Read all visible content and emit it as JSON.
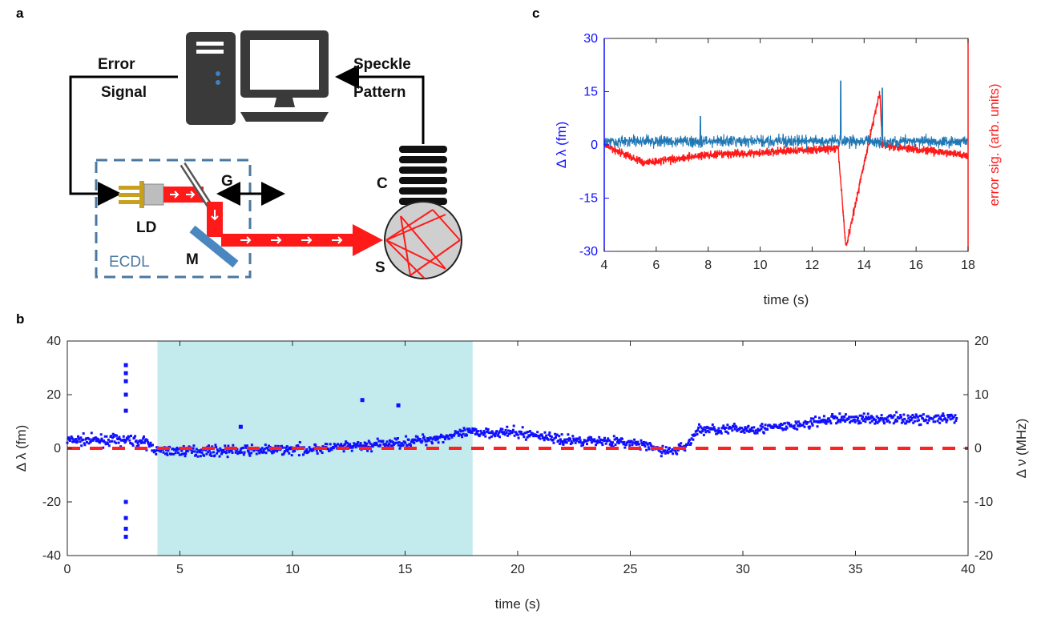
{
  "panels": {
    "a": "a",
    "b": "b",
    "c": "c"
  },
  "diagram": {
    "error_signal_line1": "Error",
    "error_signal_line2": "Signal",
    "speckle_line1": "Speckle",
    "speckle_line2": "Pattern",
    "ld": "LD",
    "g": "G",
    "m": "M",
    "c": "C",
    "s": "S",
    "ecdl": "ECDL",
    "colors": {
      "beam": "#ff1a1a",
      "box": "#4a78a0",
      "ld_gold": "#c8a020",
      "computer": "#3a3a3a"
    }
  },
  "chart_data": [
    {
      "id": "b",
      "type": "scatter",
      "xlabel": "time (s)",
      "ylabel": "Δ λ (fm)",
      "ylabel_right": "Δ ν (MHz)",
      "xlim": [
        0,
        40
      ],
      "ylim": [
        -40,
        40
      ],
      "ylim_right": [
        -20,
        20
      ],
      "xticks": [
        0,
        5,
        10,
        15,
        20,
        25,
        30,
        35,
        40
      ],
      "yticks": [
        -40,
        -20,
        0,
        20,
        40
      ],
      "yticks_right": [
        -20,
        -10,
        0,
        10,
        20
      ],
      "shaded_region": {
        "x": [
          4,
          18
        ],
        "color": "#c3ebee"
      },
      "reference_line": {
        "y": 0,
        "color": "#ff2020",
        "style": "dashed"
      },
      "series_color": "#1010ff",
      "segments": [
        {
          "x": [
            0,
            2.5
          ],
          "y_mean": 3
        },
        {
          "x": [
            2.5,
            4
          ],
          "y_mean": 3
        },
        {
          "x": [
            4,
            18
          ],
          "y_mean": -1
        },
        {
          "x": [
            18,
            22
          ],
          "y_mean": 6
        },
        {
          "x": [
            22,
            26.5
          ],
          "y_mean": 3
        },
        {
          "x": [
            26.5,
            28
          ],
          "y_mean": -1
        },
        {
          "x": [
            28,
            34
          ],
          "y_mean": 7
        },
        {
          "x": [
            34,
            39.5
          ],
          "y_mean": 11
        }
      ],
      "outliers_x_y": [
        [
          2.6,
          31
        ],
        [
          2.6,
          28
        ],
        [
          2.6,
          25
        ],
        [
          2.6,
          20
        ],
        [
          2.6,
          14
        ],
        [
          2.6,
          -20
        ],
        [
          2.6,
          -26
        ],
        [
          2.6,
          -30
        ],
        [
          2.6,
          -33
        ],
        [
          13.1,
          18
        ],
        [
          14.7,
          16
        ],
        [
          7.7,
          8
        ]
      ]
    },
    {
      "id": "c",
      "type": "line",
      "xlabel": "time (s)",
      "ylabel": "Δ λ (fm)",
      "ylabel_right": "error sig. (arb. units)",
      "xlim": [
        4,
        18
      ],
      "ylim": [
        -30,
        30
      ],
      "xticks": [
        4,
        6,
        8,
        10,
        12,
        14,
        16,
        18
      ],
      "yticks": [
        -30,
        -15,
        0,
        15,
        30
      ],
      "series": [
        {
          "name": "Δ λ",
          "color": "#1f77b4",
          "baseline": 1,
          "spikes_x_y": [
            [
              7.7,
              8
            ],
            [
              13.1,
              18
            ],
            [
              14.7,
              16
            ]
          ]
        },
        {
          "name": "error sig.",
          "color": "#ff1a1a",
          "baseline": -4,
          "features_x_y": [
            [
              4,
              0
            ],
            [
              5.5,
              -5
            ],
            [
              7.7,
              -3
            ],
            [
              13.0,
              -1
            ],
            [
              13.3,
              -29
            ],
            [
              14.6,
              15
            ],
            [
              14.7,
              0
            ],
            [
              18,
              -3
            ]
          ]
        }
      ]
    }
  ]
}
